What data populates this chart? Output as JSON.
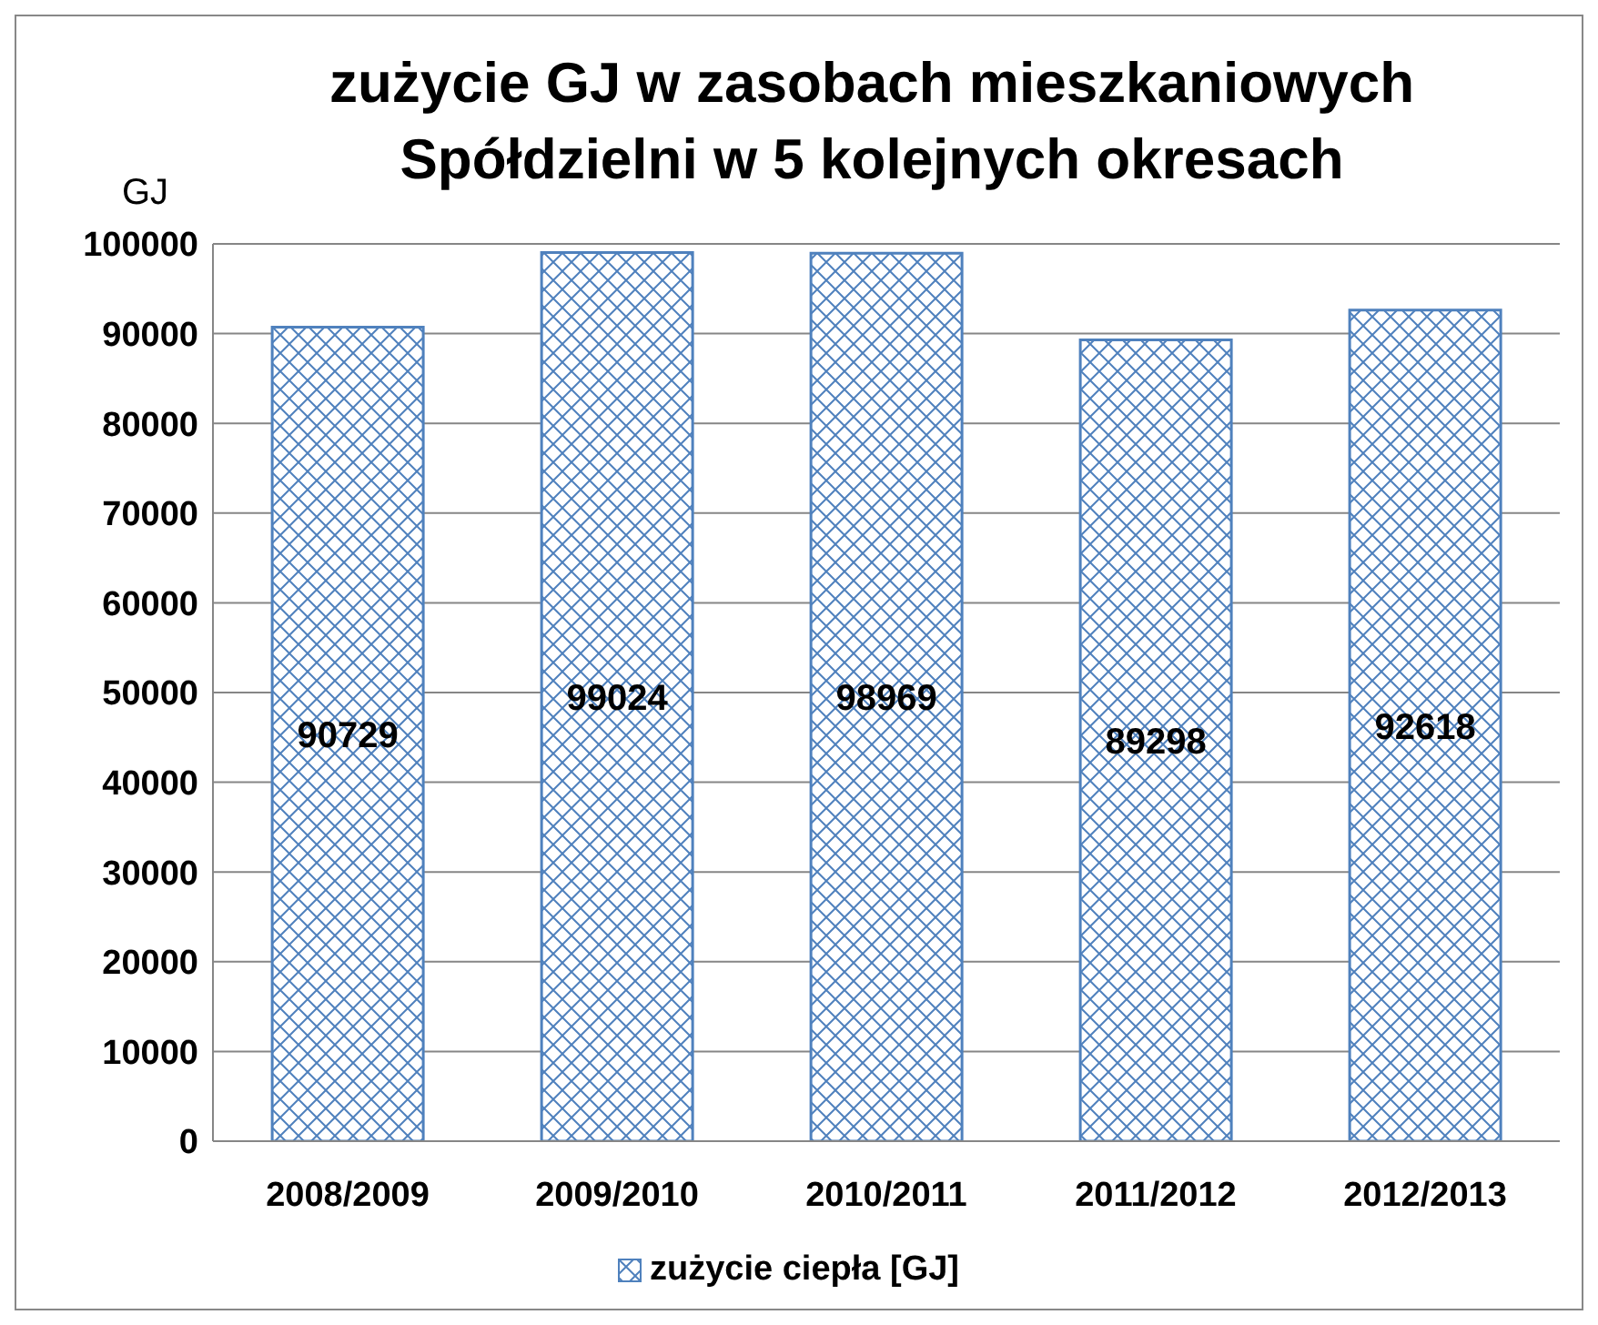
{
  "chart_data": {
    "type": "bar",
    "title": "zużycie GJ w zasobach mieszkaniowych Spółdzielni w 5 kolejnych okresach",
    "ylabel": "GJ",
    "categories": [
      "2008/2009",
      "2009/2010",
      "2010/2011",
      "2011/2012",
      "2012/2013"
    ],
    "series": [
      {
        "name": "zużycie ciepła [GJ]",
        "color": "#4f81bd",
        "values": [
          90729,
          99024,
          98969,
          89298,
          92618
        ]
      }
    ],
    "ylim": [
      0,
      100000
    ],
    "yticks": [
      0,
      10000,
      20000,
      30000,
      40000,
      50000,
      60000,
      70000,
      80000,
      90000,
      100000
    ],
    "grid": "y",
    "legend": "bottom",
    "data_labels": true
  }
}
